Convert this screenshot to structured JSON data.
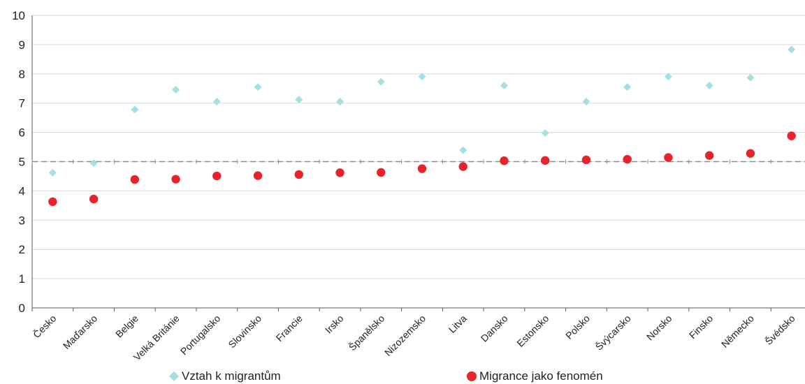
{
  "chart_data": {
    "type": "scatter",
    "title": "",
    "xlabel": "",
    "ylabel": "",
    "ylim": [
      0,
      10
    ],
    "yticks": [
      "0",
      "1",
      "2",
      "3",
      "4",
      "5",
      "6",
      "7",
      "8",
      "9",
      "10"
    ],
    "grid": true,
    "reference_line": 5,
    "legend_position": "bottom",
    "categories": [
      "Česko",
      "Maďarsko",
      "Belgie",
      "Velká Británie",
      "Portugalsko",
      "Slovinsko",
      "Francie",
      "Irsko",
      "Španělsko",
      "Nizozemsko",
      "Litva",
      "Dansko",
      "Estonsko",
      "Polsko",
      "Švýcarsko",
      "Norsko",
      "Finsko",
      "Německo",
      "Švédsko"
    ],
    "series": [
      {
        "name": "Vztah k migrantům",
        "marker": "diamond",
        "color": "#a6dfe0",
        "values": [
          4.62,
          4.95,
          6.78,
          7.46,
          7.05,
          7.55,
          7.12,
          7.05,
          7.73,
          7.91,
          5.39,
          7.6,
          5.98,
          7.05,
          7.55,
          7.91,
          7.6,
          7.87,
          8.83
        ]
      },
      {
        "name": "Migrance jako fenomén",
        "marker": "circle",
        "color": "#e8232a",
        "values": [
          3.63,
          3.72,
          4.39,
          4.4,
          4.51,
          4.52,
          4.56,
          4.62,
          4.63,
          4.76,
          4.83,
          5.03,
          5.04,
          5.06,
          5.08,
          5.14,
          5.21,
          5.28,
          5.88
        ]
      }
    ]
  }
}
